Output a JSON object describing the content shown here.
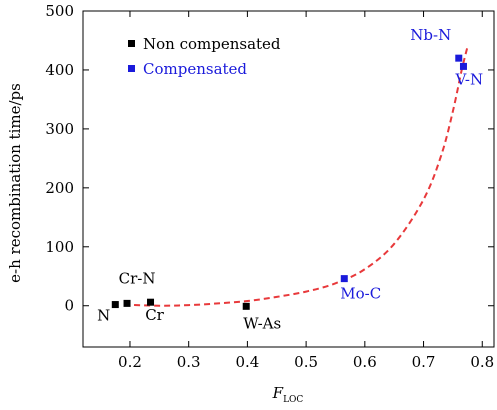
{
  "chart_data": {
    "type": "scatter",
    "title": "",
    "xlabel": "F",
    "xlabel_sub": "LOC",
    "ylabel": "e-h recombination time/ps",
    "xlim": [
      0.12,
      0.82
    ],
    "ylim": [
      -70,
      500
    ],
    "xticks": [
      0.2,
      0.3,
      0.4,
      0.5,
      0.6,
      0.7,
      0.8
    ],
    "xtick_labels": [
      "0.2",
      "0.3",
      "0.4",
      "0.5",
      "0.6",
      "0.7",
      "0.8"
    ],
    "yticks": [
      0,
      100,
      200,
      300,
      400,
      500
    ],
    "ytick_labels": [
      "0",
      "100",
      "200",
      "300",
      "400",
      "500"
    ],
    "legend_position": "top-left",
    "series": [
      {
        "name": "Non compensated",
        "color": "#000000",
        "marker": "square",
        "points": [
          {
            "label": "N",
            "x": 0.175,
            "y": 2
          },
          {
            "label": "Cr-N",
            "x": 0.195,
            "y": 4
          },
          {
            "label": "Cr",
            "x": 0.235,
            "y": 6
          },
          {
            "label": "W-As",
            "x": 0.398,
            "y": -1
          }
        ]
      },
      {
        "name": "Compensated",
        "color": "#1a1adb",
        "marker": "square",
        "points": [
          {
            "label": "Mo-C",
            "x": 0.565,
            "y": 46
          },
          {
            "label": "Nb-N",
            "x": 0.76,
            "y": 420
          },
          {
            "label": "V-N",
            "x": 0.768,
            "y": 406
          }
        ]
      }
    ],
    "fit_curve": {
      "style": "dashed",
      "color": "#e8393b",
      "points": [
        [
          0.19,
          2
        ],
        [
          0.25,
          0
        ],
        [
          0.3,
          1
        ],
        [
          0.35,
          4
        ],
        [
          0.4,
          8
        ],
        [
          0.45,
          15
        ],
        [
          0.5,
          24
        ],
        [
          0.55,
          38
        ],
        [
          0.6,
          62
        ],
        [
          0.65,
          105
        ],
        [
          0.7,
          180
        ],
        [
          0.73,
          255
        ],
        [
          0.75,
          330
        ],
        [
          0.765,
          400
        ],
        [
          0.775,
          440
        ]
      ]
    }
  }
}
